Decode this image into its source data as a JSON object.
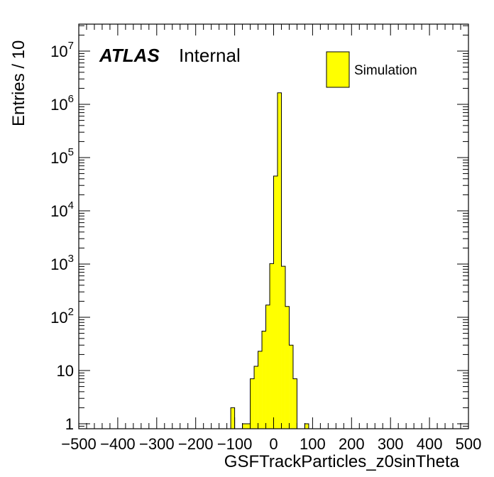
{
  "chart_data": {
    "type": "bar",
    "xlabel": "GSFTrackParticles_z0sinTheta",
    "ylabel": "Entries / 10",
    "xlim": [
      -500,
      500
    ],
    "ylim": [
      0.8,
      25000000
    ],
    "y_scale": "log",
    "bin_width": 10,
    "x_ticks": [
      -500,
      -400,
      -300,
      -200,
      -100,
      0,
      100,
      200,
      300,
      400,
      500
    ],
    "x_tick_labels": [
      "−500",
      "−400",
      "−300",
      "−200",
      "−100",
      "0",
      "100",
      "200",
      "300",
      "400",
      "500"
    ],
    "y_ticks": [
      {
        "value": 1,
        "base": "1",
        "exp": ""
      },
      {
        "value": 10,
        "base": "10",
        "exp": ""
      },
      {
        "value": 100,
        "base": "10",
        "exp": "2"
      },
      {
        "value": 1000,
        "base": "10",
        "exp": "3"
      },
      {
        "value": 10000,
        "base": "10",
        "exp": "4"
      },
      {
        "value": 100000,
        "base": "10",
        "exp": "5"
      },
      {
        "value": 1000000,
        "base": "10",
        "exp": "6"
      },
      {
        "value": 10000000,
        "base": "10",
        "exp": "7"
      }
    ],
    "series": [
      {
        "name": "Simulation",
        "color": "#ffff00",
        "edges": [
          -110,
          -100,
          -90,
          -80,
          -70,
          -60,
          -50,
          -40,
          -30,
          -20,
          -10,
          0,
          10,
          20,
          30,
          40,
          50,
          60,
          70,
          80,
          90,
          100,
          110,
          120
        ],
        "values": [
          2,
          0,
          0,
          1,
          1,
          7,
          12,
          23,
          55,
          170,
          1020,
          45000,
          1650000,
          910,
          160,
          30,
          7,
          0,
          0,
          1,
          0,
          0,
          0
        ]
      }
    ],
    "legend": {
      "position": "top-right",
      "label": "Simulation"
    },
    "annotations": {
      "atlas": "ATLAS",
      "status": "Internal"
    },
    "grid": false
  }
}
